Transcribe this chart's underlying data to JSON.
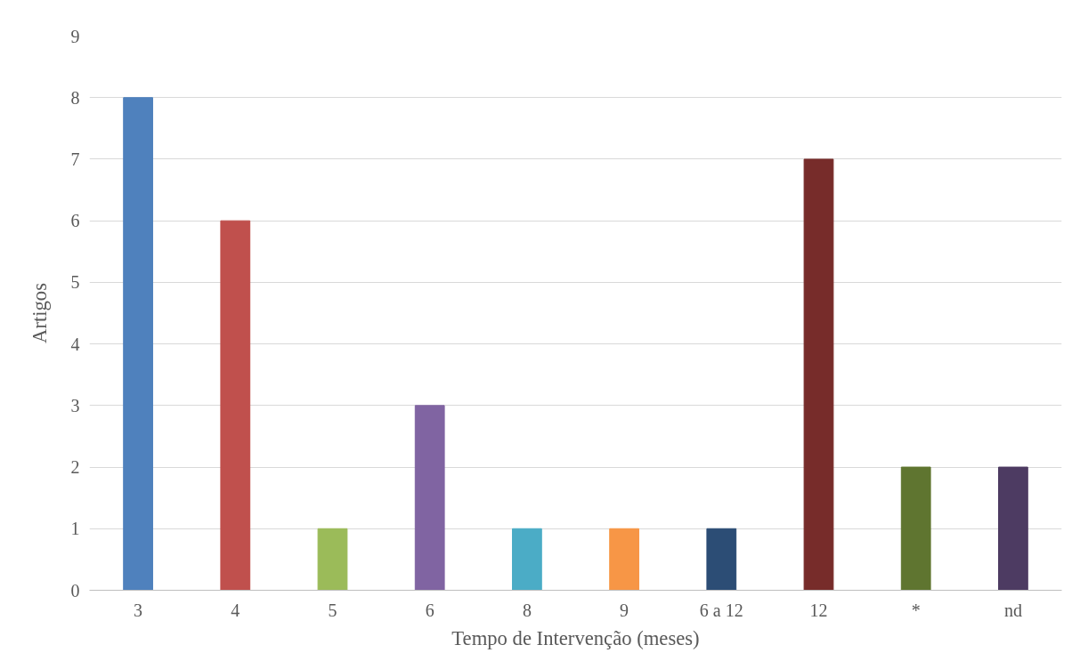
{
  "chart_data": {
    "type": "bar",
    "xlabel": "Tempo de Intervenção (meses)",
    "ylabel": "Artigos",
    "categories": [
      "3",
      "4",
      "5",
      "6",
      "8",
      "9",
      "6 a 12",
      "12",
      "*",
      "nd"
    ],
    "values": [
      8,
      6,
      1,
      3,
      1,
      1,
      1,
      7,
      2,
      2
    ],
    "colors": [
      "#4f81bd",
      "#c0504d",
      "#9bbb59",
      "#8064a2",
      "#4bacc6",
      "#f79646",
      "#2c4d75",
      "#772c2a",
      "#5f7530",
      "#4d3b62"
    ],
    "ylim": [
      0,
      9
    ],
    "yticks": [
      0,
      1,
      2,
      3,
      4,
      5,
      6,
      7,
      8,
      9
    ],
    "grid": "y"
  }
}
